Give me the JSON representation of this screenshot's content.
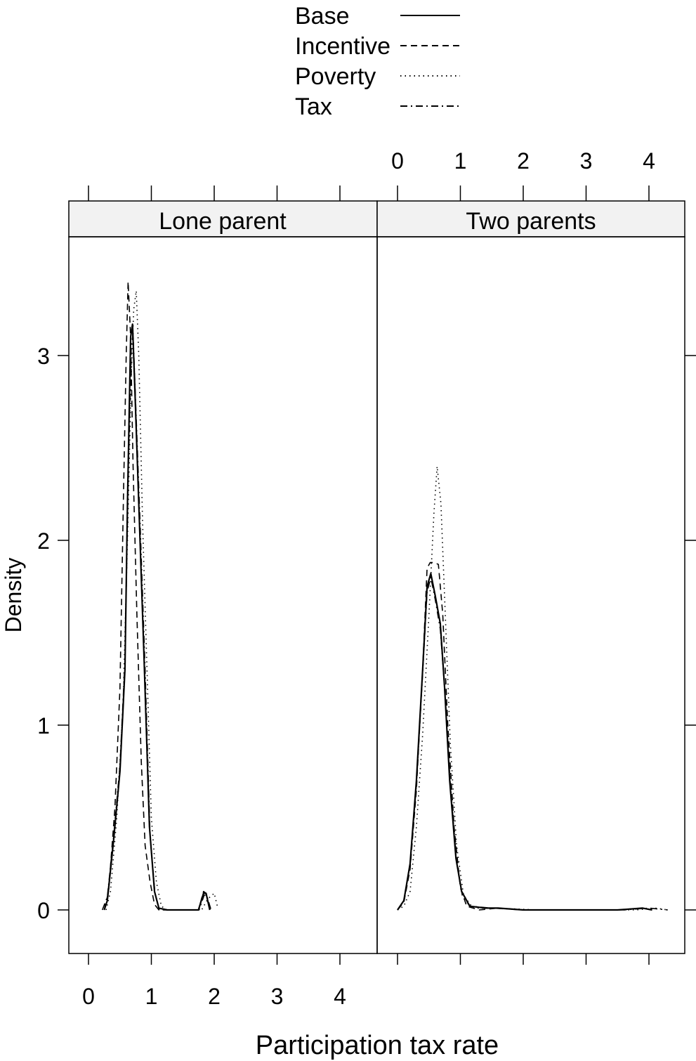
{
  "chart_data": {
    "type": "line",
    "xlabel": "Participation tax rate",
    "ylabel": "Density",
    "xlim": [
      -0.3,
      4.6
    ],
    "ylim": [
      -0.25,
      3.65
    ],
    "x_ticks": [
      0,
      1,
      2,
      3,
      4
    ],
    "y_ticks": [
      0,
      1,
      2,
      3
    ],
    "grid": false,
    "legend_position": "top-center",
    "legend": [
      {
        "name": "Base",
        "dash": "solid"
      },
      {
        "name": "Incentive",
        "dash": "dashed"
      },
      {
        "name": "Poverty",
        "dash": "dotted"
      },
      {
        "name": "Tax",
        "dash": "dotdash"
      }
    ],
    "panels": [
      {
        "title": "Lone parent",
        "series": [
          {
            "name": "Base",
            "points": [
              [
                0.25,
                0
              ],
              [
                0.3,
                0.05
              ],
              [
                0.4,
                0.38
              ],
              [
                0.5,
                0.75
              ],
              [
                0.58,
                1.3
              ],
              [
                0.62,
                2.2
              ],
              [
                0.67,
                3.1
              ],
              [
                0.7,
                3.17
              ],
              [
                0.74,
                2.8
              ],
              [
                0.8,
                2.2
              ],
              [
                0.88,
                1.4
              ],
              [
                0.97,
                0.45
              ],
              [
                1.05,
                0.1
              ],
              [
                1.12,
                0.01
              ],
              [
                1.25,
                0
              ],
              [
                1.75,
                0
              ],
              [
                1.83,
                0.09
              ],
              [
                1.87,
                0.09
              ],
              [
                1.93,
                0
              ]
            ]
          },
          {
            "name": "Incentive",
            "points": [
              [
                0.25,
                0
              ],
              [
                0.32,
                0.1
              ],
              [
                0.42,
                0.55
              ],
              [
                0.5,
                1.2
              ],
              [
                0.56,
                2.3
              ],
              [
                0.6,
                3.0
              ],
              [
                0.63,
                3.4
              ],
              [
                0.67,
                3.1
              ],
              [
                0.71,
                2.4
              ],
              [
                0.77,
                1.6
              ],
              [
                0.84,
                0.8
              ],
              [
                0.9,
                0.35
              ],
              [
                0.98,
                0.15
              ],
              [
                1.05,
                0.03
              ],
              [
                1.12,
                0
              ],
              [
                1.75,
                0
              ],
              [
                1.83,
                0.1
              ],
              [
                1.87,
                0.09
              ],
              [
                1.93,
                0
              ]
            ]
          },
          {
            "name": "Poverty",
            "points": [
              [
                0.28,
                0
              ],
              [
                0.35,
                0.1
              ],
              [
                0.45,
                0.5
              ],
              [
                0.55,
                1.1
              ],
              [
                0.62,
                2.0
              ],
              [
                0.68,
                2.9
              ],
              [
                0.72,
                3.25
              ],
              [
                0.76,
                3.35
              ],
              [
                0.8,
                3.0
              ],
              [
                0.86,
                2.1
              ],
              [
                0.94,
                1.2
              ],
              [
                1.0,
                0.5
              ],
              [
                1.08,
                0.15
              ],
              [
                1.16,
                0.02
              ],
              [
                1.25,
                0
              ],
              [
                1.8,
                0
              ],
              [
                1.9,
                0.06
              ],
              [
                2.0,
                0.09
              ],
              [
                2.05,
                0.02
              ]
            ]
          },
          {
            "name": "Tax",
            "points": [
              [
                0.22,
                0
              ],
              [
                0.3,
                0.07
              ],
              [
                0.4,
                0.4
              ],
              [
                0.5,
                0.78
              ],
              [
                0.58,
                1.35
              ],
              [
                0.63,
                2.3
              ],
              [
                0.68,
                3.05
              ],
              [
                0.71,
                3.12
              ],
              [
                0.75,
                2.75
              ],
              [
                0.82,
                2.1
              ],
              [
                0.9,
                1.3
              ],
              [
                0.98,
                0.4
              ],
              [
                1.06,
                0.08
              ],
              [
                1.13,
                0
              ],
              [
                1.76,
                0
              ],
              [
                1.84,
                0.08
              ],
              [
                1.88,
                0.08
              ],
              [
                1.95,
                0
              ]
            ]
          }
        ]
      },
      {
        "title": "Two parents",
        "series": [
          {
            "name": "Base",
            "points": [
              [
                0,
                0
              ],
              [
                0.1,
                0.05
              ],
              [
                0.2,
                0.25
              ],
              [
                0.3,
                0.7
              ],
              [
                0.4,
                1.3
              ],
              [
                0.47,
                1.75
              ],
              [
                0.53,
                1.82
              ],
              [
                0.6,
                1.7
              ],
              [
                0.68,
                1.55
              ],
              [
                0.75,
                1.2
              ],
              [
                0.83,
                0.7
              ],
              [
                0.93,
                0.28
              ],
              [
                1.02,
                0.1
              ],
              [
                1.15,
                0.02
              ],
              [
                1.4,
                0.01
              ],
              [
                1.6,
                0.01
              ],
              [
                2.0,
                0
              ],
              [
                3.5,
                0
              ],
              [
                3.9,
                0.01
              ],
              [
                4.05,
                0
              ]
            ]
          },
          {
            "name": "Incentive",
            "points": [
              [
                0,
                0
              ],
              [
                0.1,
                0.04
              ],
              [
                0.2,
                0.22
              ],
              [
                0.3,
                0.65
              ],
              [
                0.4,
                1.3
              ],
              [
                0.47,
                1.85
              ],
              [
                0.52,
                1.88
              ],
              [
                0.58,
                1.88
              ],
              [
                0.65,
                1.87
              ],
              [
                0.72,
                1.6
              ],
              [
                0.8,
                1.0
              ],
              [
                0.9,
                0.45
              ],
              [
                1.0,
                0.12
              ],
              [
                1.1,
                0.02
              ],
              [
                1.3,
                0
              ],
              [
                1.6,
                0.01
              ],
              [
                2.0,
                0
              ],
              [
                3.5,
                0
              ],
              [
                3.9,
                0.01
              ],
              [
                4.05,
                0
              ]
            ]
          },
          {
            "name": "Poverty",
            "points": [
              [
                0,
                0
              ],
              [
                0.1,
                0.02
              ],
              [
                0.2,
                0.1
              ],
              [
                0.3,
                0.45
              ],
              [
                0.4,
                0.95
              ],
              [
                0.5,
                1.6
              ],
              [
                0.58,
                2.15
              ],
              [
                0.63,
                2.4
              ],
              [
                0.69,
                2.2
              ],
              [
                0.76,
                1.6
              ],
              [
                0.84,
                0.9
              ],
              [
                0.94,
                0.35
              ],
              [
                1.05,
                0.08
              ],
              [
                1.2,
                0.01
              ],
              [
                1.6,
                0.01
              ],
              [
                2.2,
                0
              ],
              [
                3.8,
                0
              ],
              [
                4.1,
                0.01
              ],
              [
                4.3,
                0
              ]
            ]
          },
          {
            "name": "Tax",
            "points": [
              [
                0,
                0
              ],
              [
                0.1,
                0.05
              ],
              [
                0.2,
                0.24
              ],
              [
                0.3,
                0.68
              ],
              [
                0.4,
                1.28
              ],
              [
                0.47,
                1.72
              ],
              [
                0.53,
                1.8
              ],
              [
                0.6,
                1.68
              ],
              [
                0.68,
                1.52
              ],
              [
                0.76,
                1.15
              ],
              [
                0.84,
                0.68
              ],
              [
                0.94,
                0.26
              ],
              [
                1.03,
                0.08
              ],
              [
                1.15,
                0.02
              ],
              [
                1.5,
                0.01
              ],
              [
                2.0,
                0
              ],
              [
                3.6,
                0
              ],
              [
                4.0,
                0.01
              ],
              [
                4.3,
                0
              ]
            ]
          }
        ]
      }
    ]
  }
}
